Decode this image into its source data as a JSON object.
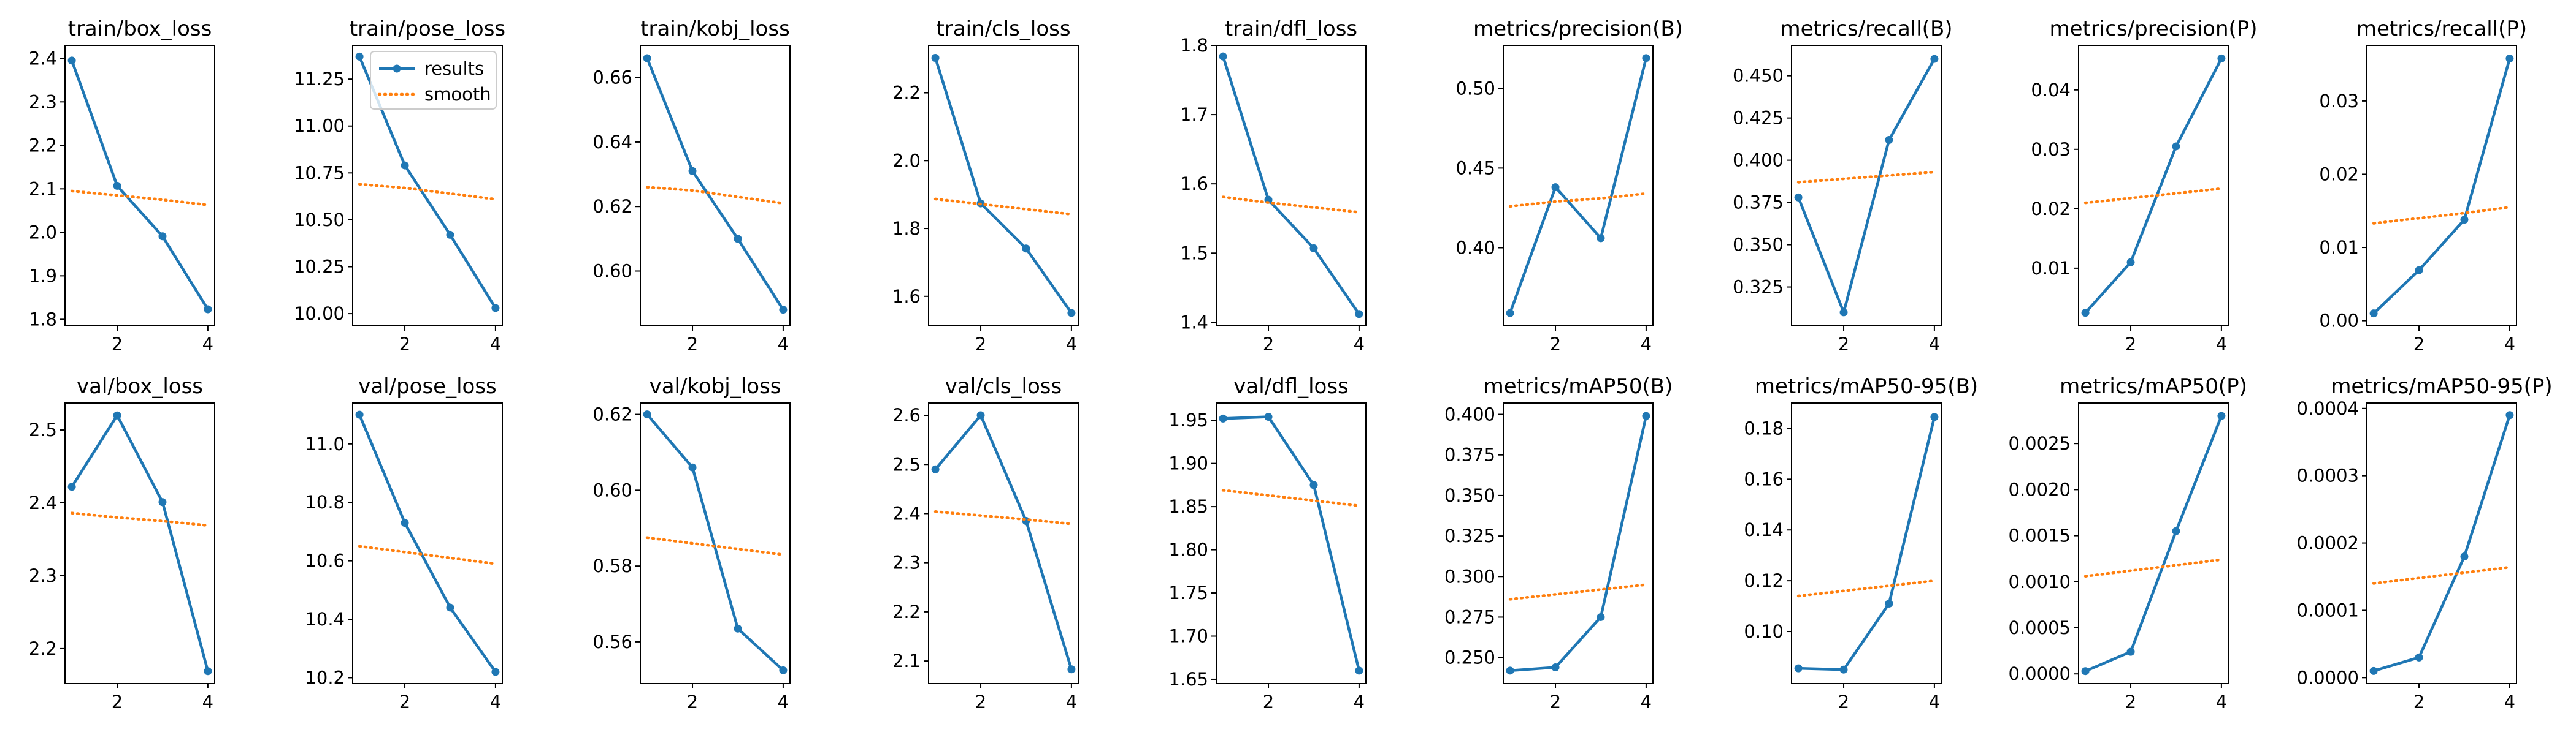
{
  "colors": {
    "results": "#1f77b4",
    "smooth": "#ff7f0e"
  },
  "chart_data": [
    {
      "type": "line",
      "title": "train/box_loss",
      "x": [
        1,
        2,
        3,
        4
      ],
      "ylim": [
        1.785,
        2.43
      ],
      "yticks": [
        1.8,
        1.9,
        2.0,
        2.1,
        2.2,
        2.3,
        2.4
      ],
      "yticklabels": [
        "1.8",
        "1.9",
        "2.0",
        "2.1",
        "2.2",
        "2.3",
        "2.4"
      ],
      "series": [
        {
          "name": "results",
          "values": [
            2.395,
            2.107,
            1.991,
            1.823
          ]
        },
        {
          "name": "smooth",
          "values": [
            2.095,
            2.085,
            2.075,
            2.063
          ]
        }
      ]
    },
    {
      "type": "line",
      "title": "train/pose_loss",
      "x": [
        1,
        2,
        3,
        4
      ],
      "ylim": [
        9.935,
        11.43
      ],
      "yticks": [
        10.0,
        10.25,
        10.5,
        10.75,
        11.0,
        11.25
      ],
      "yticklabels": [
        "10.00",
        "10.25",
        "10.50",
        "10.75",
        "11.00",
        "11.25"
      ],
      "legend": {
        "placement": "upper right",
        "entries": [
          "results",
          "smooth"
        ]
      },
      "series": [
        {
          "name": "results",
          "values": [
            11.37,
            10.79,
            10.42,
            10.03
          ]
        },
        {
          "name": "smooth",
          "values": [
            10.69,
            10.67,
            10.64,
            10.61
          ]
        }
      ]
    },
    {
      "type": "line",
      "title": "train/kobj_loss",
      "x": [
        1,
        2,
        3,
        4
      ],
      "ylim": [
        0.583,
        0.67
      ],
      "yticks": [
        0.6,
        0.62,
        0.64,
        0.66
      ],
      "yticklabels": [
        "0.60",
        "0.62",
        "0.64",
        "0.66"
      ],
      "series": [
        {
          "name": "results",
          "values": [
            0.666,
            0.631,
            0.61,
            0.588
          ]
        },
        {
          "name": "smooth",
          "values": [
            0.626,
            0.625,
            0.623,
            0.621
          ]
        }
      ]
    },
    {
      "type": "line",
      "title": "train/cls_loss",
      "x": [
        1,
        2,
        3,
        4
      ],
      "ylim": [
        1.513,
        2.34
      ],
      "yticks": [
        1.6,
        1.8,
        2.0,
        2.2
      ],
      "yticklabels": [
        "1.6",
        "1.8",
        "2.0",
        "2.2"
      ],
      "series": [
        {
          "name": "results",
          "values": [
            2.303,
            1.874,
            1.741,
            1.551
          ]
        },
        {
          "name": "smooth",
          "values": [
            1.887,
            1.872,
            1.857,
            1.842
          ]
        }
      ]
    },
    {
      "type": "line",
      "title": "train/dfl_loss",
      "x": [
        1,
        2,
        3,
        4
      ],
      "ylim": [
        1.395,
        1.8
      ],
      "yticks": [
        1.4,
        1.5,
        1.6,
        1.7,
        1.8
      ],
      "yticklabels": [
        "1.4",
        "1.5",
        "1.6",
        "1.7",
        "1.8"
      ],
      "series": [
        {
          "name": "results",
          "values": [
            1.784,
            1.577,
            1.507,
            1.412
          ]
        },
        {
          "name": "smooth",
          "values": [
            1.581,
            1.573,
            1.566,
            1.559
          ]
        }
      ]
    },
    {
      "type": "line",
      "title": "metrics/precision(B)",
      "x": [
        1,
        2,
        3,
        4
      ],
      "ylim": [
        0.351,
        0.527
      ],
      "yticks": [
        0.4,
        0.45,
        0.5
      ],
      "yticklabels": [
        "0.40",
        "0.45",
        "0.50"
      ],
      "series": [
        {
          "name": "results",
          "values": [
            0.359,
            0.438,
            0.406,
            0.519
          ]
        },
        {
          "name": "smooth",
          "values": [
            0.426,
            0.429,
            0.431,
            0.434
          ]
        }
      ]
    },
    {
      "type": "line",
      "title": "metrics/recall(B)",
      "x": [
        1,
        2,
        3,
        4
      ],
      "ylim": [
        0.302,
        0.468
      ],
      "yticks": [
        0.325,
        0.35,
        0.375,
        0.4,
        0.425,
        0.45
      ],
      "yticklabels": [
        "0.325",
        "0.350",
        "0.375",
        "0.400",
        "0.425",
        "0.450"
      ],
      "series": [
        {
          "name": "results",
          "values": [
            0.378,
            0.31,
            0.412,
            0.46
          ]
        },
        {
          "name": "smooth",
          "values": [
            0.387,
            0.389,
            0.391,
            0.393
          ]
        }
      ]
    },
    {
      "type": "line",
      "title": "metrics/precision(P)",
      "x": [
        1,
        2,
        3,
        4
      ],
      "ylim": [
        0.0003,
        0.0475
      ],
      "yticks": [
        0.01,
        0.02,
        0.03,
        0.04
      ],
      "yticklabels": [
        "0.01",
        "0.02",
        "0.03",
        "0.04"
      ],
      "series": [
        {
          "name": "results",
          "values": [
            0.0025,
            0.011,
            0.0305,
            0.0453
          ]
        },
        {
          "name": "smooth",
          "values": [
            0.021,
            0.0218,
            0.0226,
            0.0234
          ]
        }
      ]
    },
    {
      "type": "line",
      "title": "metrics/recall(P)",
      "x": [
        1,
        2,
        3,
        4
      ],
      "ylim": [
        -0.0007,
        0.0376
      ],
      "yticks": [
        0.0,
        0.01,
        0.02,
        0.03
      ],
      "yticklabels": [
        "0.00",
        "0.01",
        "0.02",
        "0.03"
      ],
      "series": [
        {
          "name": "results",
          "values": [
            0.001,
            0.0069,
            0.0138,
            0.0358
          ]
        },
        {
          "name": "smooth",
          "values": [
            0.0133,
            0.014,
            0.0147,
            0.0155
          ]
        }
      ]
    },
    {
      "type": "line",
      "title": "val/box_loss",
      "x": [
        1,
        2,
        3,
        4
      ],
      "ylim": [
        2.152,
        2.537
      ],
      "yticks": [
        2.2,
        2.3,
        2.4,
        2.5
      ],
      "yticklabels": [
        "2.2",
        "2.3",
        "2.4",
        "2.5"
      ],
      "series": [
        {
          "name": "results",
          "values": [
            2.422,
            2.52,
            2.401,
            2.169
          ]
        },
        {
          "name": "smooth",
          "values": [
            2.386,
            2.38,
            2.375,
            2.369
          ]
        }
      ]
    },
    {
      "type": "line",
      "title": "val/pose_loss",
      "x": [
        1,
        2,
        3,
        4
      ],
      "ylim": [
        10.18,
        11.14
      ],
      "yticks": [
        10.2,
        10.4,
        10.6,
        10.8,
        11.0
      ],
      "yticklabels": [
        "10.2",
        "10.4",
        "10.6",
        "10.8",
        "11.0"
      ],
      "series": [
        {
          "name": "results",
          "values": [
            11.1,
            10.73,
            10.44,
            10.22
          ]
        },
        {
          "name": "smooth",
          "values": [
            10.65,
            10.63,
            10.61,
            10.59
          ]
        }
      ]
    },
    {
      "type": "line",
      "title": "val/kobj_loss",
      "x": [
        1,
        2,
        3,
        4
      ],
      "ylim": [
        0.549,
        0.623
      ],
      "yticks": [
        0.56,
        0.58,
        0.6,
        0.62
      ],
      "yticklabels": [
        "0.56",
        "0.58",
        "0.60",
        "0.62"
      ],
      "series": [
        {
          "name": "results",
          "values": [
            0.62,
            0.606,
            0.5635,
            0.5525
          ]
        },
        {
          "name": "smooth",
          "values": [
            0.5875,
            0.586,
            0.5845,
            0.583
          ]
        }
      ]
    },
    {
      "type": "line",
      "title": "val/cls_loss",
      "x": [
        1,
        2,
        3,
        4
      ],
      "ylim": [
        2.054,
        2.625
      ],
      "yticks": [
        2.1,
        2.2,
        2.3,
        2.4,
        2.5,
        2.6
      ],
      "yticklabels": [
        "2.1",
        "2.2",
        "2.3",
        "2.4",
        "2.5",
        "2.6"
      ],
      "series": [
        {
          "name": "results",
          "values": [
            2.49,
            2.6,
            2.385,
            2.083
          ]
        },
        {
          "name": "smooth",
          "values": [
            2.404,
            2.396,
            2.388,
            2.379
          ]
        }
      ]
    },
    {
      "type": "line",
      "title": "val/dfl_loss",
      "x": [
        1,
        2,
        3,
        4
      ],
      "ylim": [
        1.645,
        1.97
      ],
      "yticks": [
        1.65,
        1.7,
        1.75,
        1.8,
        1.85,
        1.9,
        1.95
      ],
      "yticklabels": [
        "1.65",
        "1.70",
        "1.75",
        "1.80",
        "1.85",
        "1.90",
        "1.95"
      ],
      "series": [
        {
          "name": "results",
          "values": [
            1.952,
            1.954,
            1.875,
            1.66
          ]
        },
        {
          "name": "smooth",
          "values": [
            1.869,
            1.863,
            1.857,
            1.851
          ]
        }
      ]
    },
    {
      "type": "line",
      "title": "metrics/mAP50(B)",
      "x": [
        1,
        2,
        3,
        4
      ],
      "ylim": [
        0.234,
        0.407
      ],
      "yticks": [
        0.25,
        0.275,
        0.3,
        0.325,
        0.35,
        0.375,
        0.4
      ],
      "yticklabels": [
        "0.250",
        "0.275",
        "0.300",
        "0.325",
        "0.350",
        "0.375",
        "0.400"
      ],
      "series": [
        {
          "name": "results",
          "values": [
            0.242,
            0.244,
            0.275,
            0.399
          ]
        },
        {
          "name": "smooth",
          "values": [
            0.286,
            0.289,
            0.292,
            0.295
          ]
        }
      ]
    },
    {
      "type": "line",
      "title": "metrics/mAP50-95(B)",
      "x": [
        1,
        2,
        3,
        4
      ],
      "ylim": [
        0.0795,
        0.19
      ],
      "yticks": [
        0.1,
        0.12,
        0.14,
        0.16,
        0.18
      ],
      "yticklabels": [
        "0.10",
        "0.12",
        "0.14",
        "0.16",
        "0.18"
      ],
      "series": [
        {
          "name": "results",
          "values": [
            0.0855,
            0.085,
            0.111,
            0.1845
          ]
        },
        {
          "name": "smooth",
          "values": [
            0.114,
            0.116,
            0.118,
            0.12
          ]
        }
      ]
    },
    {
      "type": "line",
      "title": "metrics/mAP50(P)",
      "x": [
        1,
        2,
        3,
        4
      ],
      "ylim": [
        -0.000105,
        0.00294
      ],
      "yticks": [
        0.0,
        0.0005,
        0.001,
        0.0015,
        0.002,
        0.0025
      ],
      "yticklabels": [
        "0.0000",
        "0.0005",
        "0.0010",
        "0.0015",
        "0.0020",
        "0.0025"
      ],
      "series": [
        {
          "name": "results",
          "values": [
            3e-05,
            0.00024,
            0.00155,
            0.0028
          ]
        },
        {
          "name": "smooth",
          "values": [
            0.00106,
            0.00112,
            0.00118,
            0.00124
          ]
        }
      ]
    },
    {
      "type": "line",
      "title": "metrics/mAP50-95(P)",
      "x": [
        1,
        2,
        3,
        4
      ],
      "ylim": [
        -8.8e-06,
        0.000408
      ],
      "yticks": [
        0.0,
        0.0001,
        0.0002,
        0.0003,
        0.0004
      ],
      "yticklabels": [
        "0.0000",
        "0.0001",
        "0.0002",
        "0.0003",
        "0.0004"
      ],
      "series": [
        {
          "name": "results",
          "values": [
            1e-05,
            3e-05,
            0.00018,
            0.00039
          ]
        },
        {
          "name": "smooth",
          "values": [
            0.00014,
            0.000148,
            0.000156,
            0.000164
          ]
        }
      ]
    }
  ]
}
